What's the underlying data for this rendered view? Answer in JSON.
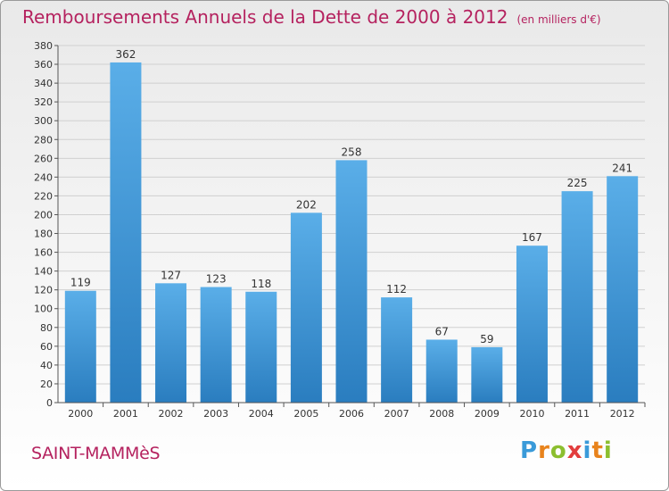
{
  "title": "Remboursements Annuels de la Dette de 2000 à 2012",
  "unit": "(en milliers d'€)",
  "commune": "SAINT-MAMMèS",
  "logo": {
    "text": "Proxiti",
    "letters": [
      {
        "ch": "P",
        "color": "#3a9ad9"
      },
      {
        "ch": "r",
        "color": "#e8831c"
      },
      {
        "ch": "o",
        "color": "#8cbf2f"
      },
      {
        "ch": "x",
        "color": "#e23d3d"
      },
      {
        "ch": "i",
        "color": "#3a9ad9"
      },
      {
        "ch": "t",
        "color": "#e8831c"
      },
      {
        "ch": "i",
        "color": "#8cbf2f"
      }
    ]
  },
  "colors": {
    "title": "#b5225f",
    "bar_top": "#5aaee8",
    "bar_bottom": "#2a7dbf",
    "grid": "#d0d0d0",
    "axis": "#555555"
  },
  "chart_data": {
    "type": "bar",
    "categories": [
      "2000",
      "2001",
      "2002",
      "2003",
      "2004",
      "2005",
      "2006",
      "2007",
      "2008",
      "2009",
      "2010",
      "2011",
      "2012"
    ],
    "values": [
      119,
      362,
      127,
      123,
      118,
      202,
      258,
      112,
      67,
      59,
      167,
      225,
      241
    ],
    "ylim": [
      0,
      380
    ],
    "yticks": [
      0,
      20,
      40,
      60,
      80,
      100,
      120,
      140,
      160,
      180,
      200,
      220,
      240,
      260,
      280,
      300,
      320,
      340,
      360,
      380
    ],
    "grid": true
  }
}
